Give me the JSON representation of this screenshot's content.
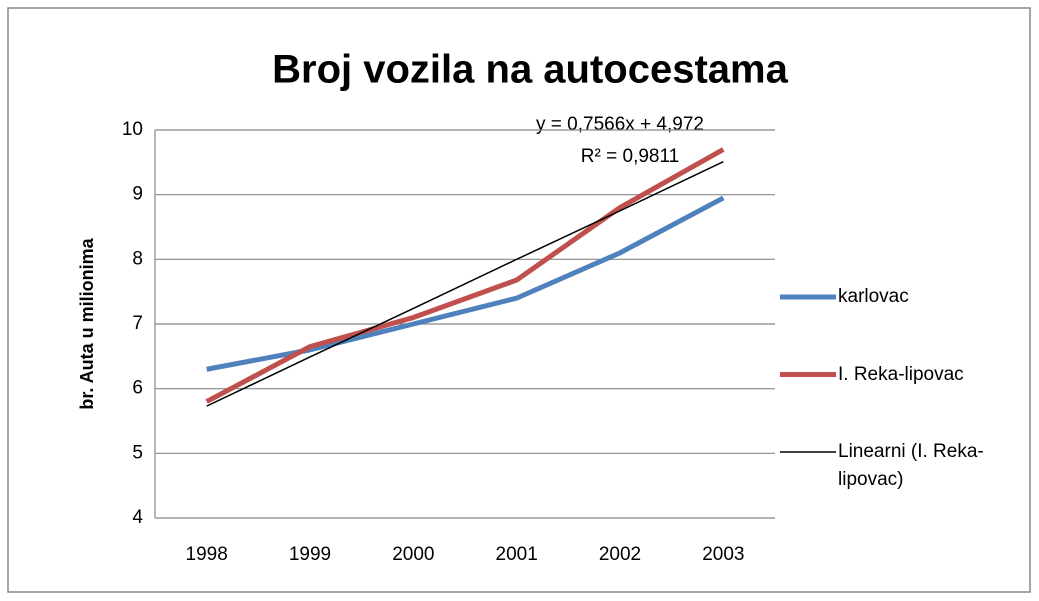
{
  "chart_data": {
    "type": "line",
    "title": "Broj vozila na autocestama",
    "y_label": "br. Auta u milionima",
    "categories": [
      "1998",
      "1999",
      "2000",
      "2001",
      "2002",
      "2003"
    ],
    "series": [
      {
        "name": "karlovac",
        "color": "#4f81bd",
        "values": [
          6.3,
          6.6,
          7.0,
          7.4,
          8.1,
          8.95
        ]
      },
      {
        "name": "I. Reka-lipovac",
        "color": "#c0504d",
        "values": [
          5.8,
          6.65,
          7.1,
          7.68,
          8.8,
          9.7
        ]
      },
      {
        "name": "Linearni (I. Reka-lipovac)",
        "color": "#000000",
        "values": [
          5.73,
          6.49,
          7.24,
          8.0,
          8.75,
          9.51
        ]
      }
    ],
    "annotations": [
      "y = 0,7566x + 4,972",
      "R² = 0,9811"
    ],
    "ylim": [
      4,
      10
    ],
    "yticks": [
      4,
      5,
      6,
      7,
      8,
      9,
      10
    ],
    "grid": true,
    "legend": "right"
  }
}
